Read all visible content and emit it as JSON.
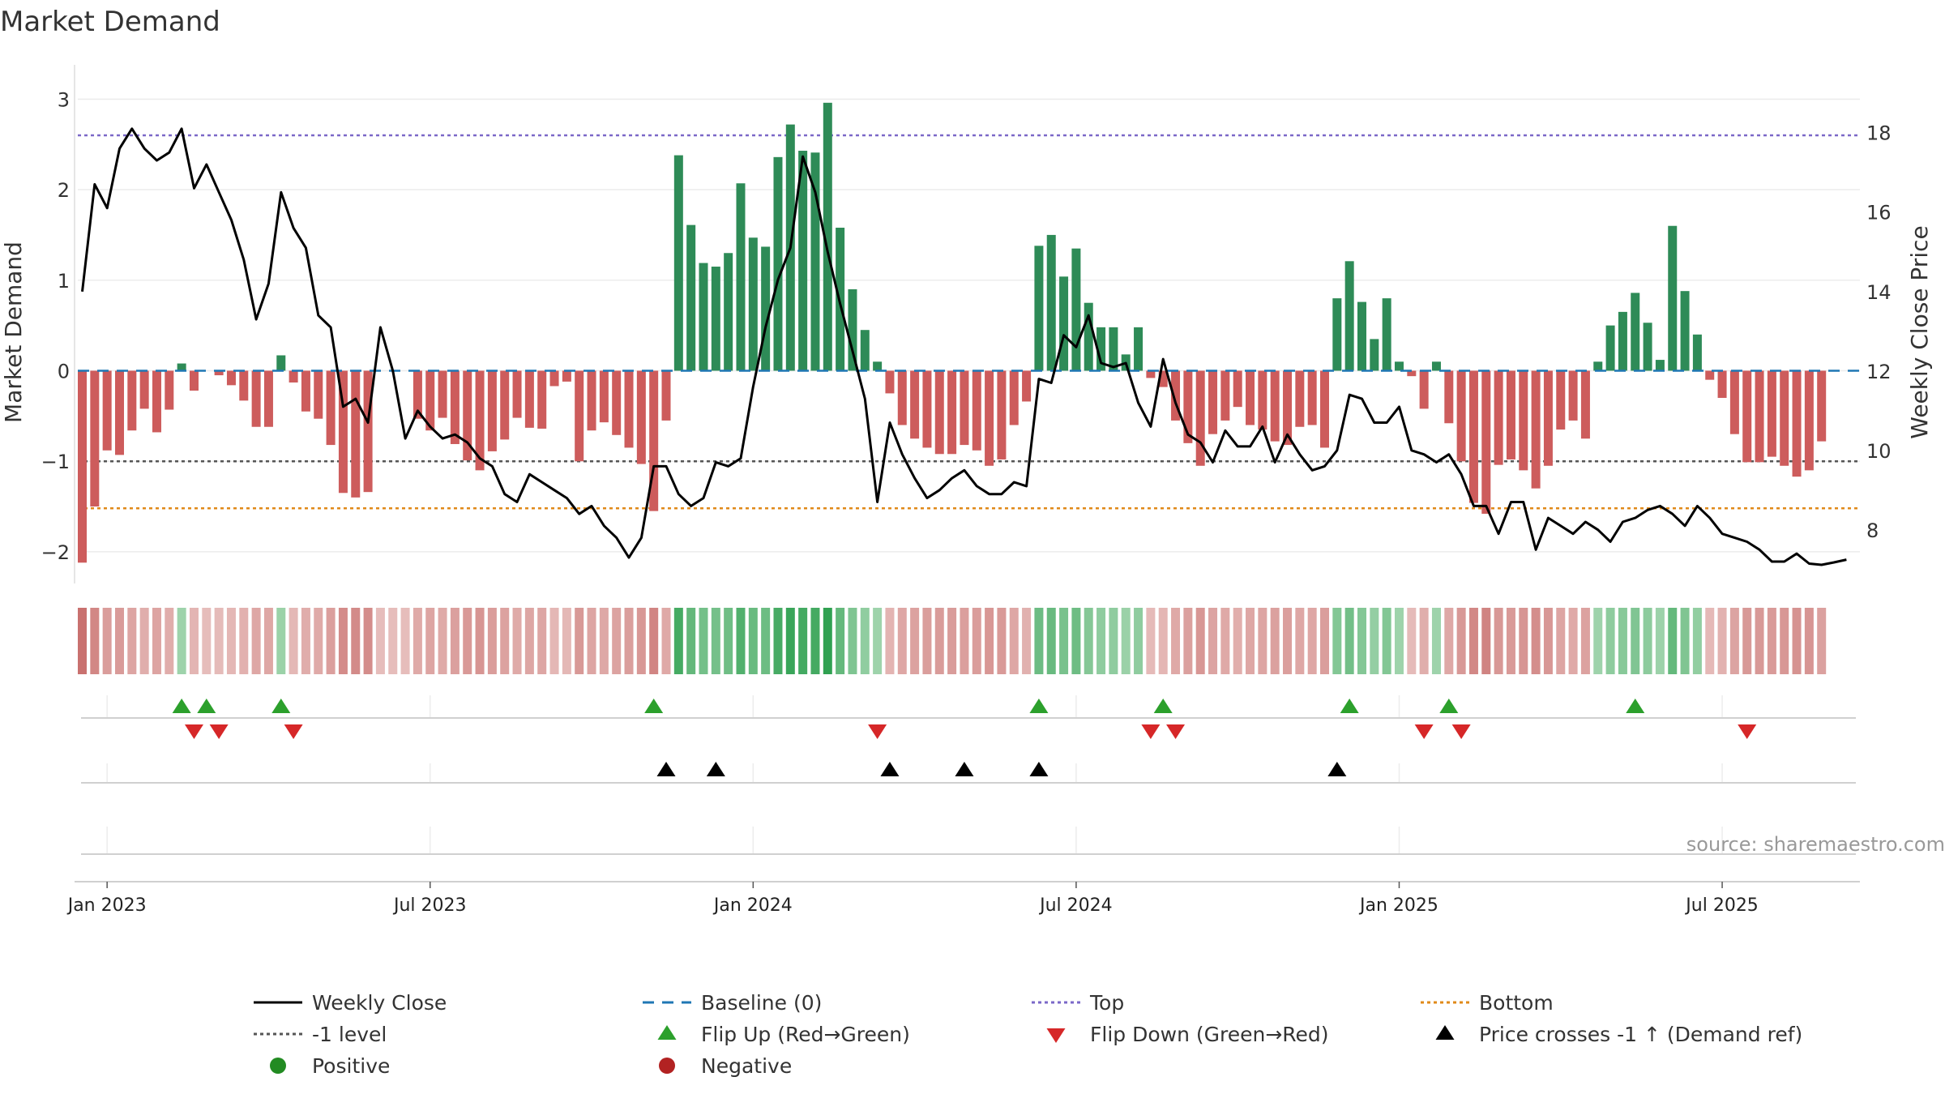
{
  "chart_data": {
    "type": "bar",
    "title": "Market Demand",
    "ylabel_left": "Market Demand",
    "ylabel_right": "Weekly Close Price",
    "source": "source: sharemaestro.com",
    "ylim_left": [
      -2.35,
      3.2
    ],
    "yticks_left": [
      "3",
      "2",
      "1",
      "0",
      "−1",
      "−2"
    ],
    "ylim_right": [
      6.65,
      19.3
    ],
    "yticks_right": [
      "18",
      "16",
      "14",
      "12",
      "10",
      "8"
    ],
    "x_ticks": [
      "Jan 2023",
      "Jul 2023",
      "Jan 2024",
      "Jul 2024",
      "Jan 2025",
      "Jul 2025"
    ],
    "x_tick_weeks": [
      0,
      26,
      52,
      78,
      104,
      130
    ],
    "first_week_offset": -2,
    "levels": {
      "top": 2.6,
      "minus_one": -1.0,
      "bottom": -1.52
    },
    "demand": [
      -2.12,
      -1.5,
      -0.88,
      -0.93,
      -0.66,
      -0.42,
      -0.68,
      -0.43,
      0.08,
      -0.22,
      0.0,
      -0.05,
      -0.16,
      -0.33,
      -0.62,
      -0.62,
      0.17,
      -0.13,
      -0.45,
      -0.53,
      -0.82,
      -1.35,
      -1.4,
      -1.34,
      -0.0,
      -0.0,
      -0.0,
      -0.53,
      -0.66,
      -0.52,
      -0.81,
      -0.99,
      -1.1,
      -0.89,
      -0.76,
      -0.52,
      -0.63,
      -0.64,
      -0.17,
      -0.12,
      -1.0,
      -0.66,
      -0.57,
      -0.71,
      -0.85,
      -1.03,
      -1.55,
      -0.55,
      2.38,
      1.61,
      1.19,
      1.15,
      1.3,
      2.07,
      1.47,
      1.37,
      2.36,
      2.72,
      2.43,
      2.41,
      2.96,
      1.58,
      0.9,
      0.45,
      0.1,
      -0.25,
      -0.6,
      -0.75,
      -0.85,
      -0.92,
      -0.92,
      -0.82,
      -0.88,
      -1.05,
      -0.98,
      -0.6,
      -0.34,
      1.38,
      1.5,
      1.04,
      1.35,
      0.75,
      0.48,
      0.48,
      0.18,
      0.48,
      -0.08,
      -0.18,
      -0.55,
      -0.8,
      -1.05,
      -0.7,
      -0.55,
      -0.4,
      -0.6,
      -0.65,
      -0.78,
      -0.82,
      -0.62,
      -0.6,
      -0.85,
      0.8,
      1.21,
      0.76,
      0.35,
      0.8,
      0.1,
      -0.06,
      -0.42,
      0.1,
      -0.58,
      -1.0,
      -1.46,
      -1.58,
      -1.04,
      -0.98,
      -1.1,
      -1.3,
      -1.05,
      -0.65,
      -0.55,
      -0.75,
      0.1,
      0.5,
      0.65,
      0.86,
      0.53,
      0.12,
      1.6,
      0.88,
      0.4,
      -0.1,
      -0.3,
      -0.7,
      -1.01,
      -1.01,
      -0.95,
      -1.05,
      -1.17,
      -1.1,
      -0.78
    ],
    "price": [
      14.0,
      16.7,
      16.1,
      17.6,
      18.1,
      17.6,
      17.3,
      17.5,
      18.1,
      16.6,
      17.2,
      16.5,
      15.8,
      14.8,
      13.3,
      14.2,
      16.5,
      15.6,
      15.1,
      13.4,
      13.1,
      11.1,
      11.3,
      10.7,
      13.1,
      12.0,
      10.3,
      11.0,
      10.6,
      10.3,
      10.4,
      10.2,
      9.8,
      9.6,
      8.9,
      8.7,
      9.4,
      9.2,
      9.0,
      8.8,
      8.4,
      8.6,
      8.1,
      7.8,
      7.3,
      7.8,
      9.6,
      9.6,
      8.9,
      8.6,
      8.8,
      9.7,
      9.6,
      9.8,
      11.6,
      13.1,
      14.3,
      15.1,
      17.4,
      16.5,
      15.0,
      13.7,
      12.5,
      11.3,
      8.7,
      10.7,
      9.9,
      9.3,
      8.8,
      9.0,
      9.3,
      9.5,
      9.1,
      8.9,
      8.9,
      9.2,
      9.1,
      11.8,
      11.7,
      12.9,
      12.6,
      13.4,
      12.2,
      12.1,
      12.2,
      11.2,
      10.6,
      12.3,
      11.2,
      10.4,
      10.2,
      9.7,
      10.5,
      10.1,
      10.1,
      10.6,
      9.7,
      10.4,
      9.9,
      9.5,
      9.6,
      10.0,
      11.4,
      11.3,
      10.7,
      10.7,
      11.1,
      10.0,
      9.9,
      9.7,
      9.9,
      9.4,
      8.6,
      8.6,
      7.9,
      8.7,
      8.7,
      7.5,
      8.3,
      8.1,
      7.9,
      8.2,
      8.0,
      7.7,
      8.2,
      8.3,
      8.5,
      8.6,
      8.4,
      8.1,
      8.6,
      8.3,
      7.9,
      7.8,
      7.7,
      7.5,
      7.2,
      7.2,
      7.4,
      7.15,
      7.12,
      7.18,
      7.25
    ],
    "flip_up_weeks": [
      8,
      10,
      16,
      46,
      77,
      87,
      102,
      110,
      125
    ],
    "flip_down_weeks": [
      9,
      11,
      17,
      64,
      86,
      88,
      108,
      111,
      134
    ],
    "price_cross_weeks": [
      47,
      51,
      65,
      71,
      77,
      101
    ],
    "legend": [
      {
        "label": "Weekly Close",
        "marker": "line-solid",
        "color": "#000000"
      },
      {
        "label": "Baseline (0)",
        "marker": "line-dash",
        "color": "#1f77b4"
      },
      {
        "label": "Top",
        "marker": "line-dot",
        "color": "#7b68c8"
      },
      {
        "label": "Bottom",
        "marker": "line-dot",
        "color": "#e08a1a"
      },
      {
        "label": "-1 level",
        "marker": "line-dot",
        "color": "#555555"
      },
      {
        "label": "Flip Up (Red→Green)",
        "marker": "triangle-up",
        "color": "#2ca02c"
      },
      {
        "label": "Flip Down (Green→Red)",
        "marker": "triangle-down",
        "color": "#d62728"
      },
      {
        "label": "Price crosses -1 ↑ (Demand ref)",
        "marker": "triangle-up",
        "color": "#000000"
      },
      {
        "label": "Positive",
        "marker": "circle",
        "color": "#228b22"
      },
      {
        "label": "Negative",
        "marker": "circle",
        "color": "#b22222"
      }
    ],
    "colors": {
      "positive_bar": "#2e8b57",
      "negative_bar": "#cd5c5c",
      "price_line": "#000000",
      "baseline": "#1f77b4",
      "top": "#7b68c8",
      "minus_one": "#555555",
      "bottom": "#e08a1a",
      "flip_up": "#2ca02c",
      "flip_down": "#d62728",
      "cross": "#000000",
      "source_text": "#999999"
    }
  }
}
